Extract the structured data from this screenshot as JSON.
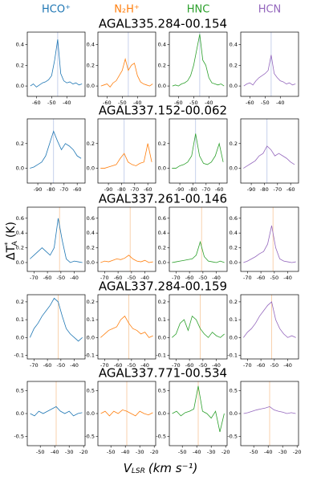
{
  "chart_data": {
    "type": "line",
    "column_titles": [
      "HCO⁺",
      "N₂H⁺",
      "HNC",
      "HCN"
    ],
    "colors": [
      "#1f77b4",
      "#ff7f0e",
      "#2ca02c",
      "#9467bd"
    ],
    "xlabel": {
      "base": "V",
      "sub": "LSR",
      "unit": "(km s⁻¹)"
    },
    "ylabel": {
      "base": "ΔT",
      "sup": "*",
      "sub": "A",
      "unit": "(K)"
    },
    "rows": [
      {
        "title": "AGAL335.284-00.154",
        "x": [
          -64,
          -62,
          -60,
          -58,
          -56,
          -54,
          -52,
          -50,
          -48,
          -46,
          -44,
          -42,
          -40,
          -38,
          -36,
          -34,
          -32,
          -30
        ],
        "xlim": [
          -66,
          -28
        ],
        "xticks": [
          -60,
          -50,
          -40
        ],
        "ylim": [
          -0.1,
          0.52
        ],
        "yticks": [
          {
            "value": 0,
            "label": "0.0"
          },
          0.2,
          0.4
        ],
        "vline": -46,
        "vline_color": "#b8c4e6",
        "series": [
          {
            "values": [
              0.0,
              0.02,
              -0.01,
              0.01,
              0.03,
              0.04,
              0.06,
              0.1,
              0.25,
              0.45,
              0.12,
              0.05,
              0.03,
              0.04,
              0.02,
              0.03,
              0.01,
              0.02
            ]
          },
          {
            "values": [
              0.0,
              0.01,
              0.02,
              -0.01,
              0.03,
              0.05,
              0.1,
              0.15,
              0.26,
              0.15,
              0.2,
              0.22,
              0.1,
              0.04,
              0.02,
              0.01,
              0.0,
              0.02
            ]
          },
          {
            "values": [
              0.0,
              0.01,
              0.0,
              0.02,
              0.03,
              0.05,
              0.1,
              0.2,
              0.35,
              0.5,
              0.25,
              0.2,
              0.08,
              0.03,
              0.02,
              0.01,
              0.02,
              0.0
            ]
          },
          {
            "values": [
              0.0,
              0.02,
              0.03,
              0.01,
              0.05,
              0.08,
              0.1,
              0.12,
              0.15,
              0.3,
              0.12,
              0.08,
              0.05,
              0.04,
              0.02,
              0.03,
              0.01,
              0.02
            ]
          }
        ]
      },
      {
        "title": "AGAL337.152-00.062",
        "x": [
          -96,
          -93,
          -90,
          -87,
          -84,
          -81,
          -78,
          -75,
          -72,
          -69,
          -66,
          -63,
          -60,
          -57
        ],
        "xlim": [
          -98,
          -54
        ],
        "xticks": [
          -90,
          -80,
          -70,
          -60
        ],
        "ylim": [
          -0.12,
          0.4
        ],
        "yticks": [
          {
            "value": 0,
            "label": "0.0"
          },
          0.2
        ],
        "vline": -78,
        "vline_color": "#b8c4e6",
        "series": [
          {
            "values": [
              0.0,
              0.01,
              0.03,
              0.05,
              0.1,
              0.2,
              0.3,
              0.22,
              0.15,
              0.2,
              0.18,
              0.15,
              0.1,
              0.08
            ]
          },
          {
            "values": [
              0.0,
              0.0,
              0.01,
              0.02,
              0.03,
              0.08,
              0.12,
              0.05,
              0.03,
              0.02,
              0.04,
              0.05,
              0.2,
              0.05
            ]
          },
          {
            "values": [
              0.0,
              0.0,
              0.02,
              0.03,
              0.05,
              0.1,
              0.28,
              0.1,
              0.04,
              0.03,
              0.05,
              0.1,
              0.2,
              0.05
            ]
          },
          {
            "values": [
              0.0,
              0.02,
              0.04,
              0.06,
              0.1,
              0.12,
              0.18,
              0.15,
              0.1,
              0.12,
              0.1,
              0.08,
              0.05,
              0.03
            ]
          }
        ]
      },
      {
        "title": "AGAL337.261-00.146",
        "x": [
          -73,
          -70,
          -67,
          -64,
          -61,
          -58,
          -55,
          -52,
          -49,
          -46,
          -43,
          -40,
          -37,
          -34
        ],
        "xlim": [
          -75,
          -32
        ],
        "xticks": [
          -70,
          -60,
          -50,
          -40
        ],
        "ylim": [
          -0.12,
          0.75
        ],
        "yticks": [
          {
            "value": 0,
            "label": "0.0"
          },
          0.2,
          0.4,
          0.6
        ],
        "vline": -51,
        "vline_color": "#f7c79a",
        "series": [
          {
            "values": [
              0.05,
              0.1,
              0.15,
              0.2,
              0.15,
              0.1,
              0.2,
              0.6,
              0.3,
              0.05,
              0.0,
              0.02,
              0.01,
              0.0
            ]
          },
          {
            "values": [
              0.0,
              0.02,
              0.01,
              0.03,
              0.05,
              0.04,
              0.06,
              0.1,
              0.05,
              0.02,
              0.01,
              0.03,
              0.0,
              0.01
            ]
          },
          {
            "values": [
              0.0,
              0.01,
              0.02,
              0.03,
              0.04,
              0.05,
              0.1,
              0.28,
              0.08,
              0.02,
              0.01,
              0.0,
              0.02,
              0.0
            ]
          },
          {
            "values": [
              0.0,
              0.02,
              0.05,
              0.08,
              0.12,
              0.15,
              0.25,
              0.5,
              0.2,
              0.05,
              0.02,
              0.01,
              0.0,
              0.01
            ]
          }
        ]
      },
      {
        "title": "AGAL337.284-00.159",
        "x": [
          -73,
          -70,
          -67,
          -64,
          -61,
          -58,
          -55,
          -52,
          -49,
          -46,
          -43,
          -40,
          -37,
          -34
        ],
        "xlim": [
          -75,
          -32
        ],
        "xticks": [
          -70,
          -60,
          -50,
          -40
        ],
        "ylim": [
          -0.12,
          0.24
        ],
        "yticks": [
          -0.1,
          {
            "value": 0,
            "label": "0.0"
          },
          0.1,
          0.2
        ],
        "vline": -52,
        "vline_color": "#f7c79a",
        "series": [
          {
            "values": [
              0.0,
              0.05,
              0.08,
              0.12,
              0.15,
              0.18,
              0.22,
              0.2,
              0.12,
              0.05,
              0.02,
              0.0,
              -0.02,
              0.0
            ]
          },
          {
            "values": [
              0.0,
              0.02,
              0.04,
              0.05,
              0.06,
              0.1,
              0.12,
              0.08,
              0.05,
              0.04,
              0.02,
              0.03,
              0.0,
              0.01
            ]
          },
          {
            "values": [
              0.0,
              0.02,
              0.08,
              0.1,
              0.04,
              0.12,
              0.1,
              0.05,
              0.02,
              0.0,
              0.03,
              0.01,
              0.0,
              0.02
            ]
          },
          {
            "values": [
              0.0,
              0.03,
              0.05,
              0.08,
              0.12,
              0.15,
              0.18,
              0.2,
              0.1,
              0.05,
              0.02,
              0.0,
              0.01,
              0.0
            ]
          }
        ]
      },
      {
        "title": "AGAL337.771-00.534",
        "x": [
          -57,
          -54,
          -51,
          -48,
          -45,
          -42,
          -39,
          -36,
          -33,
          -30,
          -27,
          -24,
          -21
        ],
        "xlim": [
          -59,
          -19
        ],
        "xticks": [
          -50,
          -40,
          -30,
          -20
        ],
        "ylim": [
          -0.7,
          0.7
        ],
        "yticks": [
          -0.5,
          {
            "value": 0,
            "label": "0.0"
          },
          0.5
        ],
        "vline": -39,
        "vline_color": "#f7c79a",
        "series": [
          {
            "values": [
              0.0,
              -0.05,
              0.05,
              0.0,
              0.05,
              0.1,
              0.15,
              0.05,
              0.0,
              0.05,
              -0.05,
              0.0,
              0.02
            ]
          },
          {
            "values": [
              0.0,
              0.05,
              -0.05,
              0.05,
              0.0,
              0.08,
              0.05,
              0.0,
              -0.05,
              0.05,
              0.0,
              -0.03,
              0.02
            ]
          },
          {
            "values": [
              0.0,
              0.05,
              -0.05,
              0.02,
              0.05,
              0.1,
              0.6,
              0.05,
              0.0,
              -0.1,
              0.05,
              -0.4,
              0.0
            ]
          },
          {
            "values": [
              0.0,
              0.02,
              0.05,
              0.08,
              0.1,
              0.12,
              0.15,
              0.08,
              0.05,
              0.03,
              0.0,
              0.02,
              0.0
            ]
          }
        ]
      }
    ]
  }
}
